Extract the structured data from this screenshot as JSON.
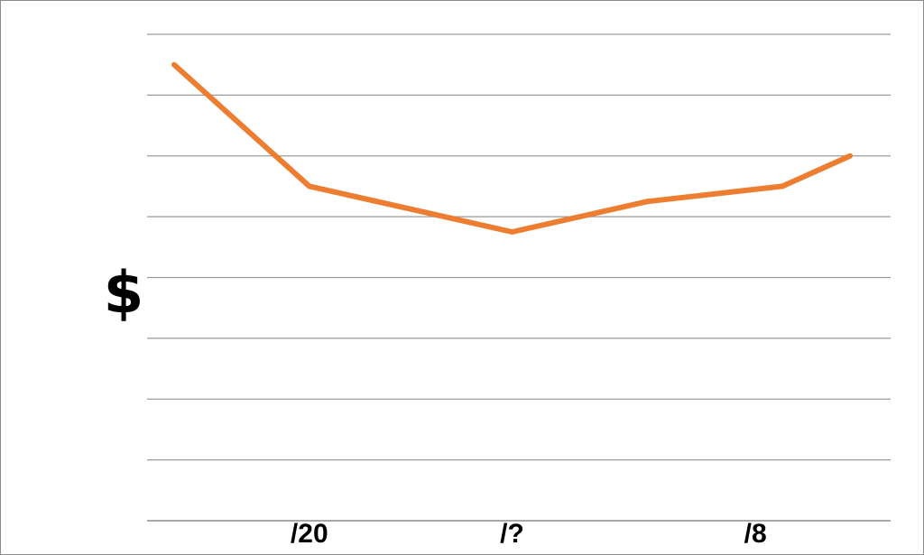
{
  "chart_data": {
    "type": "line",
    "title": "",
    "xlabel": "",
    "ylabel": "$",
    "x_tick_labels": [
      {
        "label": "/20",
        "x": 1
      },
      {
        "label": "/?",
        "x": 2.5
      },
      {
        "label": "/8",
        "x": 4.3
      }
    ],
    "xlim": [
      -0.2,
      5.3
    ],
    "ylim": [
      0,
      8
    ],
    "grid": true,
    "legend": "none",
    "series": [
      {
        "color": "#ED7D31",
        "points": [
          {
            "x": 0,
            "y": 7.5
          },
          {
            "x": 1,
            "y": 5.5
          },
          {
            "x": 2.5,
            "y": 4.75
          },
          {
            "x": 3.5,
            "y": 5.25
          },
          {
            "x": 4.5,
            "y": 5.5
          },
          {
            "x": 5,
            "y": 6.0
          }
        ]
      }
    ]
  }
}
